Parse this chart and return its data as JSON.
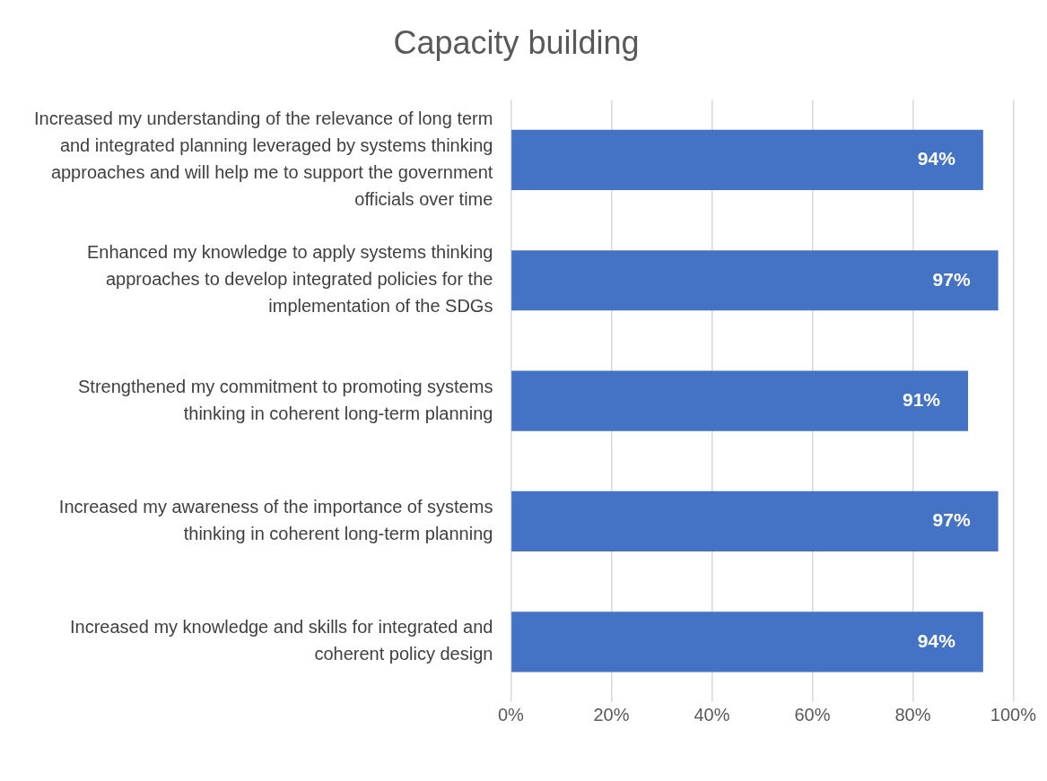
{
  "chart_data": {
    "type": "bar",
    "orientation": "horizontal",
    "title": "Capacity building",
    "categories": [
      "Increased my understanding of the relevance of long term and integrated planning leveraged by systems thinking approaches and will help me to support the government officials over time",
      "Enhanced my knowledge to apply systems thinking approaches to develop integrated policies for the implementation of the SDGs",
      "Strengthened my commitment to promoting systems thinking in coherent long-term planning",
      "Increased my awareness of the importance of systems thinking in coherent long-term planning",
      "Increased my knowledge and skills for integrated and coherent policy design"
    ],
    "values": [
      94,
      97,
      91,
      97,
      94
    ],
    "value_labels": [
      "94%",
      "97%",
      "91%",
      "97%",
      "94%"
    ],
    "color": "#4472c4",
    "xlim": [
      0,
      100
    ],
    "xticks": [
      {
        "value": 0,
        "label": "0%"
      },
      {
        "value": 20,
        "label": "20%"
      },
      {
        "value": 40,
        "label": "40%"
      },
      {
        "value": 60,
        "label": "60%"
      },
      {
        "value": 80,
        "label": "80%"
      },
      {
        "value": 100,
        "label": "100%"
      }
    ],
    "grid": "x",
    "legend": false
  }
}
